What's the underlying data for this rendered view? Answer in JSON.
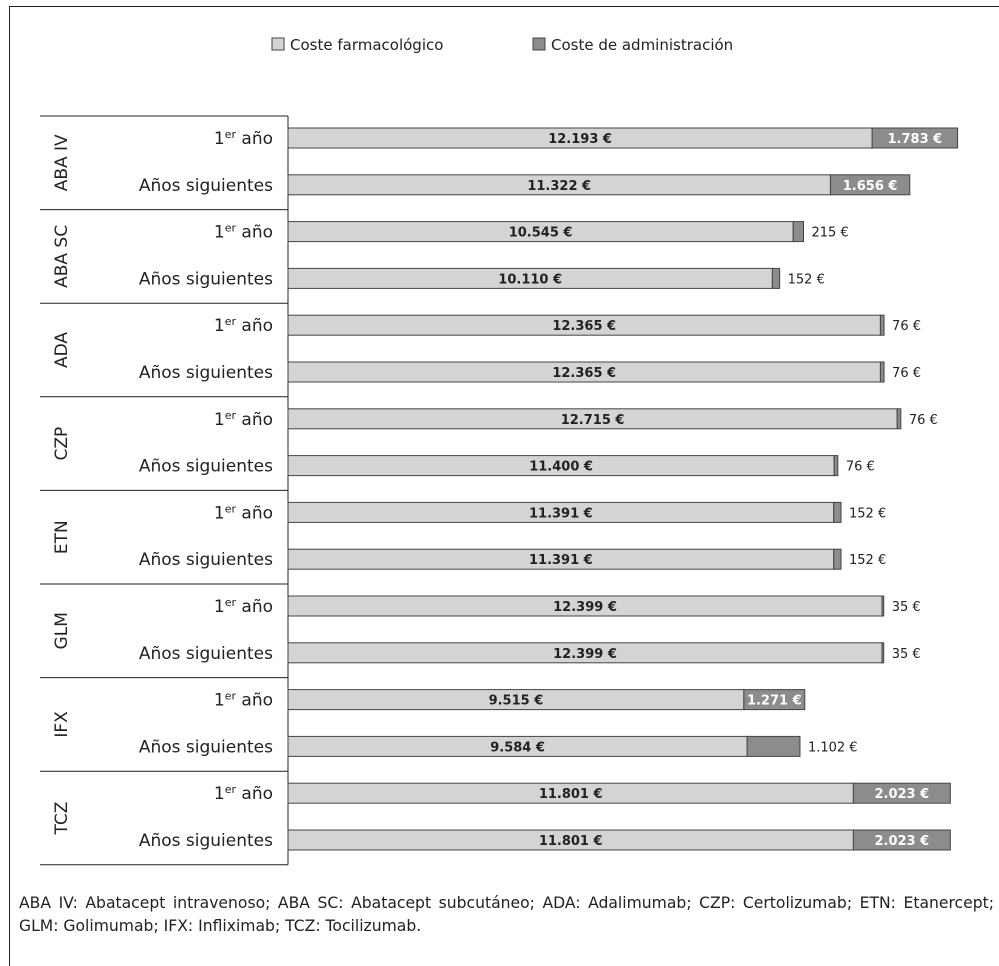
{
  "chart_data": {
    "type": "bar",
    "stacked": true,
    "orientation": "horizontal",
    "title": "",
    "xlabel": "",
    "ylabel": "",
    "legend": {
      "placement": "top",
      "entries": [
        {
          "name": "Coste farmacológico",
          "color": "#d4d4d4"
        },
        {
          "name": "Coste de administración",
          "color": "#8c8c8c"
        }
      ]
    },
    "row_labels": {
      "first_main": "1",
      "first_sup": "er",
      "first_rest": " año",
      "following": "Años siguientes"
    },
    "groups": [
      {
        "name": "ABA IV",
        "rows": [
          {
            "period": "first",
            "drug": 12193,
            "drug_label": "12.193 €",
            "admin": 1783,
            "admin_label": "1.783 €"
          },
          {
            "period": "following",
            "drug": 11322,
            "drug_label": "11.322 €",
            "admin": 1656,
            "admin_label": "1.656 €"
          }
        ]
      },
      {
        "name": "ABA SC",
        "rows": [
          {
            "period": "first",
            "drug": 10545,
            "drug_label": "10.545 €",
            "admin": 215,
            "admin_label": "215 €"
          },
          {
            "period": "following",
            "drug": 10110,
            "drug_label": "10.110 €",
            "admin": 152,
            "admin_label": "152 €"
          }
        ]
      },
      {
        "name": "ADA",
        "rows": [
          {
            "period": "first",
            "drug": 12365,
            "drug_label": "12.365 €",
            "admin": 76,
            "admin_label": "76 €"
          },
          {
            "period": "following",
            "drug": 12365,
            "drug_label": "12.365 €",
            "admin": 76,
            "admin_label": "76 €"
          }
        ]
      },
      {
        "name": "CZP",
        "rows": [
          {
            "period": "first",
            "drug": 12715,
            "drug_label": "12.715 €",
            "admin": 76,
            "admin_label": "76 €"
          },
          {
            "period": "following",
            "drug": 11400,
            "drug_label": "11.400 €",
            "admin": 76,
            "admin_label": "76 €"
          }
        ]
      },
      {
        "name": "ETN",
        "rows": [
          {
            "period": "first",
            "drug": 11391,
            "drug_label": "11.391 €",
            "admin": 152,
            "admin_label": "152 €"
          },
          {
            "period": "following",
            "drug": 11391,
            "drug_label": "11.391 €",
            "admin": 152,
            "admin_label": "152 €"
          }
        ]
      },
      {
        "name": "GLM",
        "rows": [
          {
            "period": "first",
            "drug": 12399,
            "drug_label": "12.399 €",
            "admin": 35,
            "admin_label": "35 €"
          },
          {
            "period": "following",
            "drug": 12399,
            "drug_label": "12.399 €",
            "admin": 35,
            "admin_label": "35 €"
          }
        ]
      },
      {
        "name": "IFX",
        "rows": [
          {
            "period": "first",
            "drug": 9515,
            "drug_label": "9.515 €",
            "admin": 1271,
            "admin_label": "1.271 €"
          },
          {
            "period": "following",
            "drug": 9584,
            "drug_label": "9.584 €",
            "admin": 1102,
            "admin_label": "1.102 €"
          }
        ]
      },
      {
        "name": "TCZ",
        "rows": [
          {
            "period": "first",
            "drug": 11801,
            "drug_label": "11.801 €",
            "admin": 2023,
            "admin_label": "2.023 €"
          },
          {
            "period": "following",
            "drug": 11801,
            "drug_label": "11.801 €",
            "admin": 2023,
            "admin_label": "2.023 €"
          }
        ]
      }
    ]
  },
  "footnote": "ABA IV: Abatacept intravenoso; ABA SC: Abatacept subcutáneo; ADA: Adalimumab; CZP: Certolizumab; ETN: Etanercept; GLM: Golimumab; IFX: Infliximab; TCZ: Tocilizumab."
}
